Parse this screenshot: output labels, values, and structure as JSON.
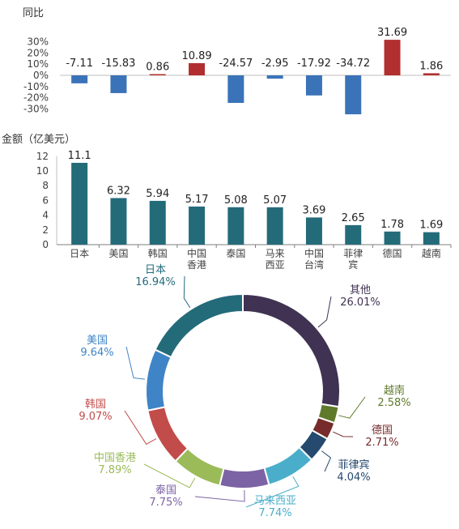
{
  "charts": {
    "yoy": {
      "title": "同比",
      "y_ticks": [
        "30%",
        "20%",
        "10%",
        "0%",
        "-10%",
        "-20%",
        "-30%"
      ],
      "positive_color": "#b22f2f",
      "negative_color": "#3a73b8"
    },
    "amount": {
      "title": "金额（亿美元）",
      "y_ticks": [
        "12",
        "10",
        "8",
        "6",
        "4",
        "2",
        "0"
      ],
      "bar_color": "#246b7a"
    },
    "share": {
      "colors": [
        "#246b7a",
        "#3f84c6",
        "#c14c4a",
        "#9bbb59",
        "#7c63a5",
        "#4aaecb",
        "#f59640",
        "#26496e",
        "#772b2b",
        "#5f7a2b",
        "#403252"
      ]
    }
  },
  "chart_data": [
    {
      "type": "bar",
      "title": "同比",
      "categories": [
        "日本",
        "美国",
        "韩国",
        "中国香港",
        "泰国",
        "马来西亚",
        "中国台湾",
        "菲律宾",
        "德国",
        "越南"
      ],
      "values": [
        -7.11,
        -15.83,
        0.86,
        10.89,
        -24.57,
        -2.95,
        -17.92,
        -34.72,
        31.69,
        1.86
      ],
      "value_labels": [
        "-7.11",
        "-15.83",
        "0.86",
        "10.89",
        "-24.57",
        "-2.95",
        "-17.92",
        "-34.72",
        "31.69",
        "1.86"
      ],
      "unit": "%",
      "ylim": [
        -35,
        35
      ]
    },
    {
      "type": "bar",
      "title": "金额（亿美元）",
      "categories": [
        "日本",
        "美国",
        "韩国",
        "中国香港",
        "泰国",
        "马来西亚",
        "中国台湾",
        "菲律宾",
        "德国",
        "越南"
      ],
      "values": [
        11.1,
        6.32,
        5.94,
        5.17,
        5.08,
        5.07,
        3.69,
        2.65,
        1.78,
        1.69
      ],
      "value_labels": [
        "11.1",
        "6.32",
        "5.94",
        "5.17",
        "5.08",
        "5.07",
        "3.69",
        "2.65",
        "1.78",
        "1.69"
      ],
      "ylim": [
        0,
        12
      ]
    },
    {
      "type": "pie",
      "categories": [
        "日本",
        "美国",
        "韩国",
        "中国香港",
        "泰国",
        "马来西亚",
        "越南",
        "德国",
        "菲律宾",
        "其他"
      ],
      "values": [
        16.94,
        9.64,
        9.07,
        7.89,
        7.75,
        7.74,
        2.58,
        2.71,
        4.04,
        26.01
      ],
      "value_labels": [
        "16.94%",
        "9.64%",
        "9.07%",
        "7.89%",
        "7.75%",
        "7.74%",
        "2.58%",
        "2.71%",
        "4.04%",
        "26.01%"
      ]
    }
  ]
}
